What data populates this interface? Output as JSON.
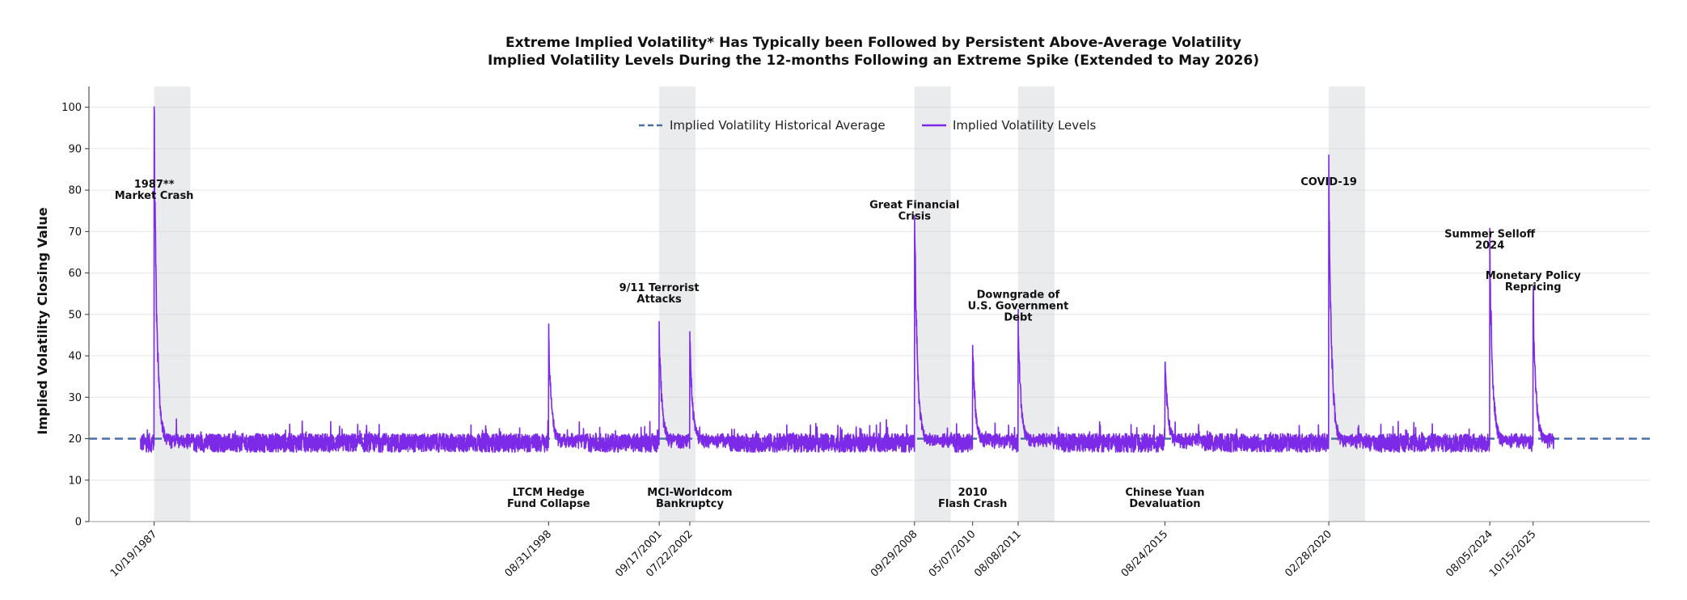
{
  "colors": {
    "series": "#7d2ae8",
    "average_line": "#4a6fa5",
    "shade": "#c8ccd2",
    "grid": "#e6e6e6",
    "axis": "#999999"
  },
  "chart_data": {
    "type": "line",
    "title": "Extreme Implied Volatility* Has Typically been Followed by Persistent Above-Average Volatility",
    "subtitle": "Implied Volatility Levels During the 12-months Following an Extreme Spike (Extended to May 2026)",
    "ylabel": "Implied Volatility Closing Value",
    "xlabel": "",
    "ylim": [
      0,
      105
    ],
    "yticks": [
      0,
      10,
      20,
      30,
      40,
      50,
      60,
      70,
      80,
      90,
      100
    ],
    "grid": "horizontal",
    "legend_position": "top-center",
    "x_range": [
      "1986-01-01",
      "2029-01-01"
    ],
    "historical_average": 20,
    "series": [
      {
        "name": "Implied Volatility Historical Average",
        "style": "dashed",
        "value": 20
      },
      {
        "name": "Implied Volatility Levels",
        "style": "solid",
        "baseline": 19
      }
    ],
    "xtick_labels": [
      {
        "date": "1987-10-19",
        "label": "10/19/1987"
      },
      {
        "date": "1998-08-31",
        "label": "08/31/1998"
      },
      {
        "date": "2001-09-17",
        "label": "09/17/2001"
      },
      {
        "date": "2002-07-22",
        "label": "07/22/2002"
      },
      {
        "date": "2008-09-29",
        "label": "09/29/2008"
      },
      {
        "date": "2010-05-07",
        "label": "05/07/2010"
      },
      {
        "date": "2011-08-08",
        "label": "08/08/2011"
      },
      {
        "date": "2015-08-24",
        "label": "08/24/2015"
      },
      {
        "date": "2020-02-28",
        "label": "02/28/2020"
      },
      {
        "date": "2024-08-05",
        "label": "08/05/2024"
      },
      {
        "date": "2025-10-15",
        "label": "10/15/2025"
      }
    ],
    "events": [
      {
        "date": "1987-10-19",
        "peak": 98,
        "label_lines": [
          "1987**",
          "Market Crash"
        ],
        "label_y": 80,
        "label_pos": "top",
        "shaded": true
      },
      {
        "date": "1998-08-31",
        "peak": 45,
        "label_lines": [
          "LTCM Hedge",
          "Fund Collapse"
        ],
        "label_pos": "bottom",
        "shaded": false
      },
      {
        "date": "2001-09-17",
        "peak": 45,
        "label_lines": [
          "9/11 Terrorist",
          "Attacks"
        ],
        "label_y": 55,
        "label_pos": "top",
        "shaded": true
      },
      {
        "date": "2002-07-22",
        "peak": 45,
        "label_lines": [
          "MCI-Worldcom",
          "Bankruptcy"
        ],
        "label_pos": "bottom",
        "shaded": false
      },
      {
        "date": "2008-09-29",
        "peak": 78,
        "label_lines": [
          "Great Financial",
          "Crisis"
        ],
        "label_y": 75,
        "label_pos": "top",
        "shaded": true
      },
      {
        "date": "2010-05-07",
        "peak": 42,
        "label_lines": [
          "2010",
          "Flash Crash"
        ],
        "label_pos": "bottom",
        "shaded": false
      },
      {
        "date": "2011-08-08",
        "peak": 48,
        "label_lines": [
          "Downgrade of",
          "U.S. Government",
          "Debt"
        ],
        "label_y": 52,
        "label_pos": "top",
        "shaded": true
      },
      {
        "date": "2015-08-24",
        "peak": 40,
        "label_lines": [
          "Chinese Yuan",
          "Devaluation"
        ],
        "label_pos": "bottom",
        "shaded": false
      },
      {
        "date": "2020-02-28",
        "peak": 84,
        "label_lines": [
          "COVID-19"
        ],
        "label_y": 82,
        "label_pos": "top",
        "shaded": true
      },
      {
        "date": "2024-08-05",
        "peak": 65,
        "label_lines": [
          "Summer Selloff",
          "2024"
        ],
        "label_y": 68,
        "label_pos": "top",
        "shaded": false
      },
      {
        "date": "2025-10-15",
        "peak": 55,
        "label_lines": [
          "Monetary Policy",
          "Repricing"
        ],
        "label_y": 58,
        "label_pos": "top",
        "shaded": false
      }
    ],
    "series_end": "2026-05-15"
  }
}
